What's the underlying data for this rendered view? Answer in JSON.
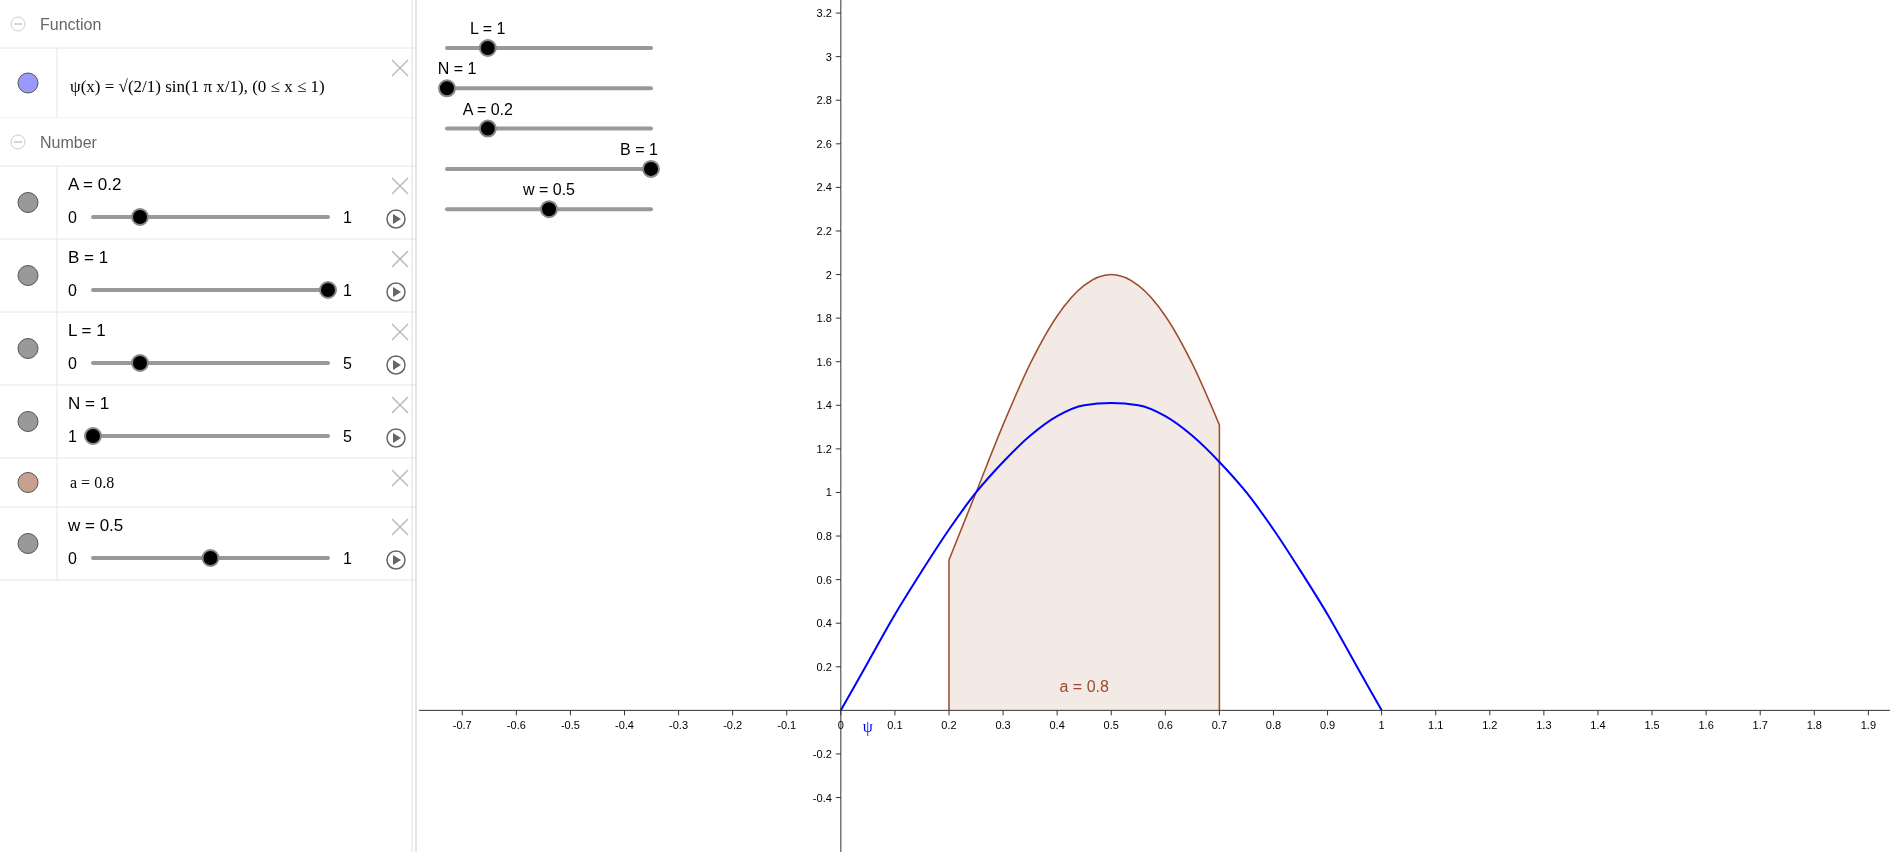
{
  "chart_data": [
    {
      "type": "other",
      "annotations": [
        "Function",
        "ψ(x) = √(2/1) sin(1 π x/1),    (0 ≤ x ≤ 1)",
        "Number",
        "A = 0.2",
        "0",
        "1",
        "B = 1",
        "0",
        "1",
        "L = 1",
        "0",
        "5",
        "N = 1",
        "1",
        "5",
        "a = 0.8",
        "w = 0.5",
        "0",
        "1"
      ]
    },
    {
      "type": "line",
      "xlim": [
        -0.78,
        1.94
      ],
      "ylim": [
        -0.65,
        3.26
      ],
      "xticks": [
        -0.7,
        -0.6,
        -0.5,
        -0.4,
        -0.3,
        -0.2,
        -0.1,
        0,
        0.1,
        0.2,
        0.3,
        0.4,
        0.5,
        0.6,
        0.7,
        0.8,
        0.9,
        1,
        1.1,
        1.2,
        1.3,
        1.4,
        1.5,
        1.6,
        1.7,
        1.8,
        1.9
      ],
      "yticks": [
        -0.4,
        -0.2,
        0.2,
        0.4,
        0.6,
        0.8,
        1,
        1.2,
        1.4,
        1.6,
        1.8,
        2,
        2.2,
        2.4,
        2.6,
        2.8,
        3,
        3.2
      ],
      "grid": false,
      "annotations": [
        "L = 1",
        "N = 1",
        "A = 0.2",
        "B = 1",
        "w = 0.5"
      ],
      "series": [
        {
          "type": "area",
          "name": "a = 0.8",
          "color": "#9c4a2a",
          "x": [
            0.2,
            0.25,
            0.3,
            0.35,
            0.4,
            0.45,
            0.5,
            0.55,
            0.6,
            0.65,
            0.7
          ],
          "values": [
            0.69,
            1.0,
            1.31,
            1.59,
            1.81,
            1.95,
            2.0,
            1.95,
            1.81,
            1.59,
            1.31
          ]
        },
        {
          "type": "line",
          "name": "ψ",
          "color": "#0000ff",
          "x": [
            0,
            0.05,
            0.1,
            0.15,
            0.2,
            0.25,
            0.3,
            0.35,
            0.4,
            0.45,
            0.5,
            0.55,
            0.6,
            0.65,
            0.7,
            0.75,
            0.8,
            0.85,
            0.9,
            0.95,
            1
          ],
          "values": [
            0,
            0.22,
            0.44,
            0.64,
            0.83,
            1.0,
            1.14,
            1.26,
            1.35,
            1.4,
            1.41,
            1.4,
            1.35,
            1.26,
            1.14,
            1.0,
            0.83,
            0.64,
            0.44,
            0.22,
            0
          ]
        }
      ]
    }
  ]
}
